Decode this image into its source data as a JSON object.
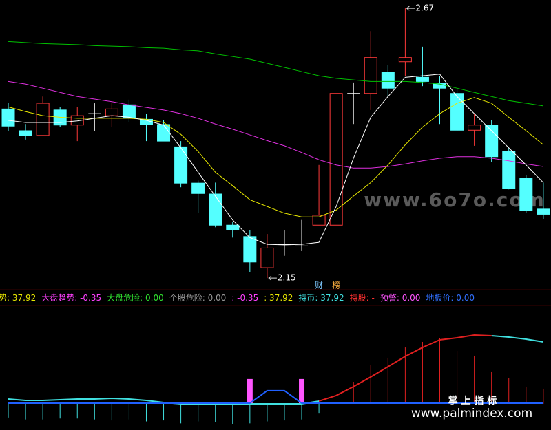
{
  "chart_data": [
    {
      "type": "candlestick",
      "ylim": [
        2.129,
        2.686
      ],
      "open": [
        2.476,
        2.434,
        2.425,
        2.474,
        2.445,
        2.467,
        2.463,
        2.484,
        2.456,
        2.446,
        2.403,
        2.333,
        2.312,
        2.252,
        2.23,
        2.17,
        2.215,
        2.212,
        2.252,
        2.252,
        2.506,
        2.506,
        2.547,
        2.567,
        2.537,
        2.525,
        2.506,
        2.435,
        2.445,
        2.394,
        2.342,
        2.283
      ],
      "high": [
        2.487,
        2.447,
        2.5,
        2.48,
        2.48,
        2.487,
        2.487,
        2.494,
        2.467,
        2.454,
        2.414,
        2.338,
        2.334,
        2.259,
        2.242,
        2.235,
        2.242,
        2.262,
        2.368,
        2.506,
        2.527,
        2.626,
        2.56,
        2.67,
        2.596,
        2.54,
        2.514,
        2.467,
        2.454,
        2.401,
        2.348,
        2.334
      ],
      "low": [
        2.434,
        2.417,
        2.425,
        2.441,
        2.414,
        2.434,
        2.441,
        2.45,
        2.414,
        2.414,
        2.325,
        2.275,
        2.248,
        2.228,
        2.162,
        2.15,
        2.193,
        2.202,
        2.252,
        2.252,
        2.447,
        2.474,
        2.5,
        2.54,
        2.52,
        2.447,
        2.434,
        2.405,
        2.374,
        2.321,
        2.275,
        2.264
      ],
      "close": [
        2.443,
        2.425,
        2.487,
        2.445,
        2.463,
        2.467,
        2.476,
        2.458,
        2.446,
        2.414,
        2.333,
        2.313,
        2.252,
        2.243,
        2.181,
        2.208,
        2.215,
        2.212,
        2.271,
        2.506,
        2.506,
        2.575,
        2.516,
        2.575,
        2.529,
        2.516,
        2.435,
        2.445,
        2.384,
        2.323,
        2.28,
        2.273
      ],
      "up_color": "#ff3a3a",
      "down_color": "#54ffff",
      "flat_color": "#ffffff",
      "series": [
        {
          "color": "#00c000",
          "values": [
            2.606,
            2.604,
            2.602,
            2.601,
            2.6,
            2.598,
            2.597,
            2.596,
            2.594,
            2.593,
            2.59,
            2.588,
            2.582,
            2.577,
            2.572,
            2.564,
            2.556,
            2.548,
            2.54,
            2.535,
            2.532,
            2.529,
            2.529,
            2.529,
            2.527,
            2.524,
            2.516,
            2.508,
            2.5,
            2.492,
            2.487,
            2.482
          ]
        },
        {
          "color": "#e030e0",
          "values": [
            2.529,
            2.524,
            2.516,
            2.508,
            2.5,
            2.495,
            2.49,
            2.484,
            2.479,
            2.474,
            2.467,
            2.458,
            2.447,
            2.437,
            2.426,
            2.415,
            2.405,
            2.392,
            2.378,
            2.368,
            2.362,
            2.362,
            2.365,
            2.37,
            2.376,
            2.381,
            2.384,
            2.384,
            2.381,
            2.376,
            2.37,
            2.365
          ]
        },
        {
          "color": "#e8e800",
          "values": [
            2.48,
            2.471,
            2.463,
            2.46,
            2.458,
            2.458,
            2.458,
            2.458,
            2.456,
            2.45,
            2.427,
            2.394,
            2.354,
            2.328,
            2.301,
            2.288,
            2.275,
            2.268,
            2.268,
            2.281,
            2.308,
            2.334,
            2.368,
            2.407,
            2.441,
            2.467,
            2.487,
            2.498,
            2.487,
            2.46,
            2.434,
            2.407
          ]
        },
        {
          "color": "#ffffff",
          "values": [
            2.454,
            2.45,
            2.45,
            2.45,
            2.453,
            2.458,
            2.463,
            2.46,
            2.454,
            2.445,
            2.401,
            2.354,
            2.308,
            2.262,
            2.228,
            2.215,
            2.214,
            2.215,
            2.219,
            2.288,
            2.381,
            2.46,
            2.5,
            2.537,
            2.54,
            2.543,
            2.5,
            2.467,
            2.434,
            2.401,
            2.368,
            2.334
          ]
        }
      ],
      "high_label": 2.67,
      "low_label": 2.15,
      "markers": [
        {
          "text": "财",
          "color": "#7ec8ff",
          "index": 18
        },
        {
          "text": "榜",
          "color": "#ffb040",
          "index": 19
        }
      ],
      "watermark": "www.6o7o.com"
    },
    {
      "type": "indicator",
      "ylim": [
        -26.8,
        100
      ],
      "series": [
        {
          "style": "line",
          "color": "#40e0e0",
          "values": [
            4.9,
            3.5,
            3.5,
            4.2,
            4.9,
            4.9,
            5.6,
            4.9,
            3.5,
            1.4,
            0,
            0,
            0,
            0,
            0,
            0,
            0,
            0,
            2.8,
            null,
            null,
            null,
            null,
            null,
            null,
            null,
            null,
            null,
            69.7,
            68.3,
            66.2,
            63.4
          ]
        },
        {
          "style": "line",
          "color": "#e02020",
          "values": [
            null,
            null,
            null,
            null,
            null,
            null,
            null,
            null,
            null,
            null,
            null,
            null,
            null,
            null,
            null,
            null,
            null,
            null,
            2.8,
            8.5,
            17.6,
            27.5,
            38.0,
            48.6,
            57.7,
            65.5,
            67.6,
            70.4,
            69.7,
            null,
            null,
            null
          ]
        },
        {
          "style": "line",
          "color": "#2060ff",
          "values": [
            0.7,
            0.7,
            0.7,
            0.7,
            0.7,
            0.7,
            0.7,
            0.7,
            0.7,
            0.7,
            0.7,
            0.7,
            0.7,
            0.7,
            0.7,
            13.4,
            13.4,
            0.7,
            0.7,
            0.7,
            0.7,
            0.7,
            0.7,
            0.7,
            0.7,
            0.7,
            0.7,
            0.7,
            0.7,
            0.7,
            0.7,
            0.7
          ]
        },
        {
          "style": "bar",
          "color": "#ff55ff",
          "values": [
            0,
            0,
            0,
            0,
            0,
            0,
            0,
            0,
            0,
            0,
            0,
            0,
            0,
            0,
            25.4,
            0,
            0,
            25.4,
            0,
            0,
            0,
            0,
            0,
            0,
            0,
            0,
            0,
            0,
            0,
            0,
            0,
            0
          ]
        },
        {
          "style": "stick",
          "color_up": "#e02020",
          "color_down": "#40e0e0",
          "values": [
            -14,
            -16,
            -16,
            -15,
            -15,
            -16,
            -17,
            -16,
            -18,
            -17,
            -20,
            -18,
            -19,
            -21,
            -20,
            -18,
            -17,
            -16,
            -10,
            0,
            22.5,
            40.1,
            47.2,
            57.7,
            63.4,
            66.9,
            54.2,
            49.3,
            33.1,
            26.1,
            17.6,
            15.5
          ]
        }
      ],
      "watermarks": [
        "掌 上 指 标",
        "www.palmindex.com"
      ]
    }
  ],
  "legend": [
    {
      "text": "势: 37.92",
      "color": "#e8e800"
    },
    {
      "text": "大盘趋势: -0.35",
      "color": "#ff40ff"
    },
    {
      "text": "大盘危险: 0.00",
      "color": "#30e030"
    },
    {
      "text": "个股危险: 0.00",
      "color": "#9a9a9a"
    },
    {
      "text": ": -0.35",
      "color": "#ff40ff"
    },
    {
      "text": ": 37.92",
      "color": "#e8e800"
    },
    {
      "text": "持币: 37.92",
      "color": "#40e0e0"
    },
    {
      "text": "持股: -",
      "color": "#ff3030"
    },
    {
      "text": "预警: 0.00",
      "color": "#ff55ff"
    },
    {
      "text": "地板价: 0.00",
      "color": "#3070ff"
    }
  ]
}
